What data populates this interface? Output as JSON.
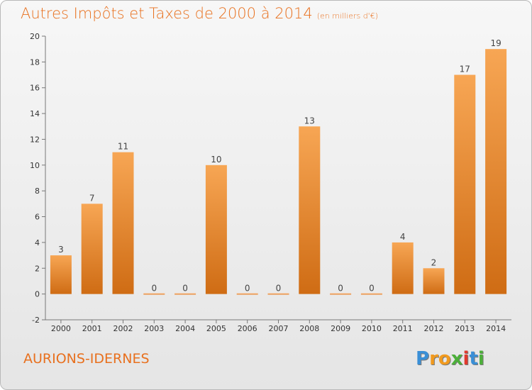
{
  "header": {
    "title": "Autres Impôts et Taxes de 2000 à 2014",
    "unit": "(en milliers d'€)"
  },
  "footer": {
    "commune": "AURIONS-IDERNES",
    "logo_letters": [
      "P",
      "r",
      "o",
      "x",
      "i",
      "t",
      "i"
    ],
    "logo_colors": [
      "#3a8fd6",
      "#f19a1e",
      "#f19a1e",
      "#4caf3a",
      "#e03a2e",
      "#3a8fd6",
      "#4caf3a"
    ]
  },
  "chart_data": {
    "type": "bar",
    "title": "Autres Impôts et Taxes de 2000 à 2014",
    "subtitle": "(en milliers d'€)",
    "categories": [
      "2000",
      "2001",
      "2002",
      "2003",
      "2004",
      "2005",
      "2006",
      "2007",
      "2008",
      "2009",
      "2010",
      "2011",
      "2012",
      "2013",
      "2014"
    ],
    "values": [
      3,
      7,
      11,
      0,
      0,
      10,
      0,
      0,
      13,
      0,
      0,
      4,
      2,
      17,
      19
    ],
    "ylim": [
      -2,
      20
    ],
    "yticks": [
      -2,
      0,
      2,
      4,
      6,
      8,
      10,
      12,
      14,
      16,
      18,
      20
    ],
    "grid": false,
    "legend": "none",
    "bar_color": "#f08a28"
  }
}
